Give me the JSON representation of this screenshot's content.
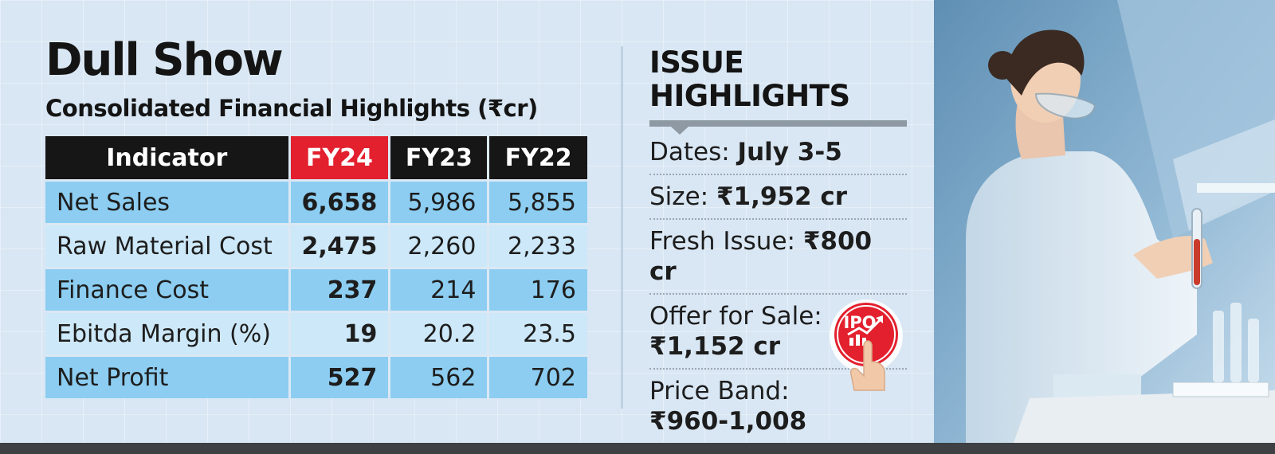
{
  "title": "Dull Show",
  "subtitle": "Consolidated Financial Highlights (₹cr)",
  "chart_data": {
    "type": "table",
    "columns": [
      "Indicator",
      "FY24",
      "FY23",
      "FY22"
    ],
    "highlight_column": "FY24",
    "rows": [
      {
        "indicator": "Net Sales",
        "values": [
          "6,658",
          "5,986",
          "5,855"
        ]
      },
      {
        "indicator": "Raw Material Cost",
        "values": [
          "2,475",
          "2,260",
          "2,233"
        ]
      },
      {
        "indicator": "Finance Cost",
        "values": [
          "237",
          "214",
          "176"
        ]
      },
      {
        "indicator": "Ebitda Margin (%)",
        "values": [
          "19",
          "20.2",
          "23.5"
        ]
      },
      {
        "indicator": "Net Profit",
        "values": [
          "527",
          "562",
          "702"
        ]
      }
    ]
  },
  "issue_highlights": {
    "title_line1": "ISSUE",
    "title_line2": "HIGHLIGHTS",
    "items": [
      {
        "label": "Dates: ",
        "value": "July 3-5"
      },
      {
        "label": "Size: ",
        "value": "₹1,952 cr"
      },
      {
        "label": "Fresh Issue: ",
        "value": "₹800 cr"
      },
      {
        "label": "Offer for Sale:",
        "value": "₹1,152 cr"
      },
      {
        "label": "Price Band:",
        "value": "₹960-1,008"
      }
    ]
  },
  "badge": {
    "text": "IPO",
    "icon": "ipo-growth-icon"
  },
  "colors": {
    "highlight": "#e3202e",
    "header": "#161616",
    "row_odd": "#8ccdf1",
    "row_even": "#cde8f8",
    "background": "#dbe8f4"
  }
}
